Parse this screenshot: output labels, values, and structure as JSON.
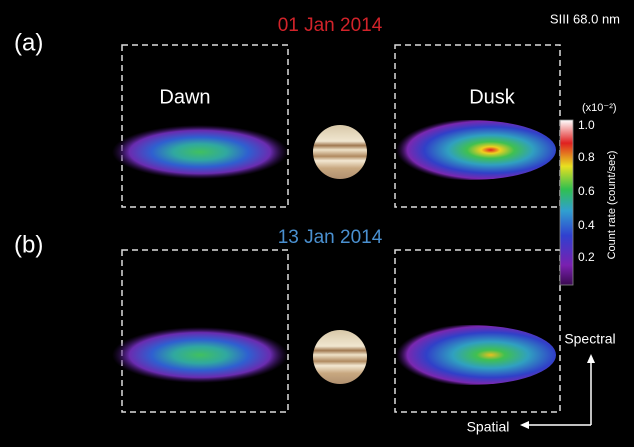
{
  "panels": [
    {
      "label": "(a)",
      "date": "01 Jan 2014"
    },
    {
      "label": "(b)",
      "date": "13 Jan 2014"
    }
  ],
  "wavelength": "SIII 68.0 nm",
  "regions": [
    "Dawn",
    "Dusk"
  ],
  "colorbar": {
    "scale": "(x10⁻²)",
    "label": "Count rate (count/sec)",
    "ticks": [
      "1.0",
      "0.8",
      "0.6",
      "0.4",
      "0.2"
    ]
  },
  "axes": {
    "spectral": "Spectral",
    "spatial": "Spatial"
  }
}
